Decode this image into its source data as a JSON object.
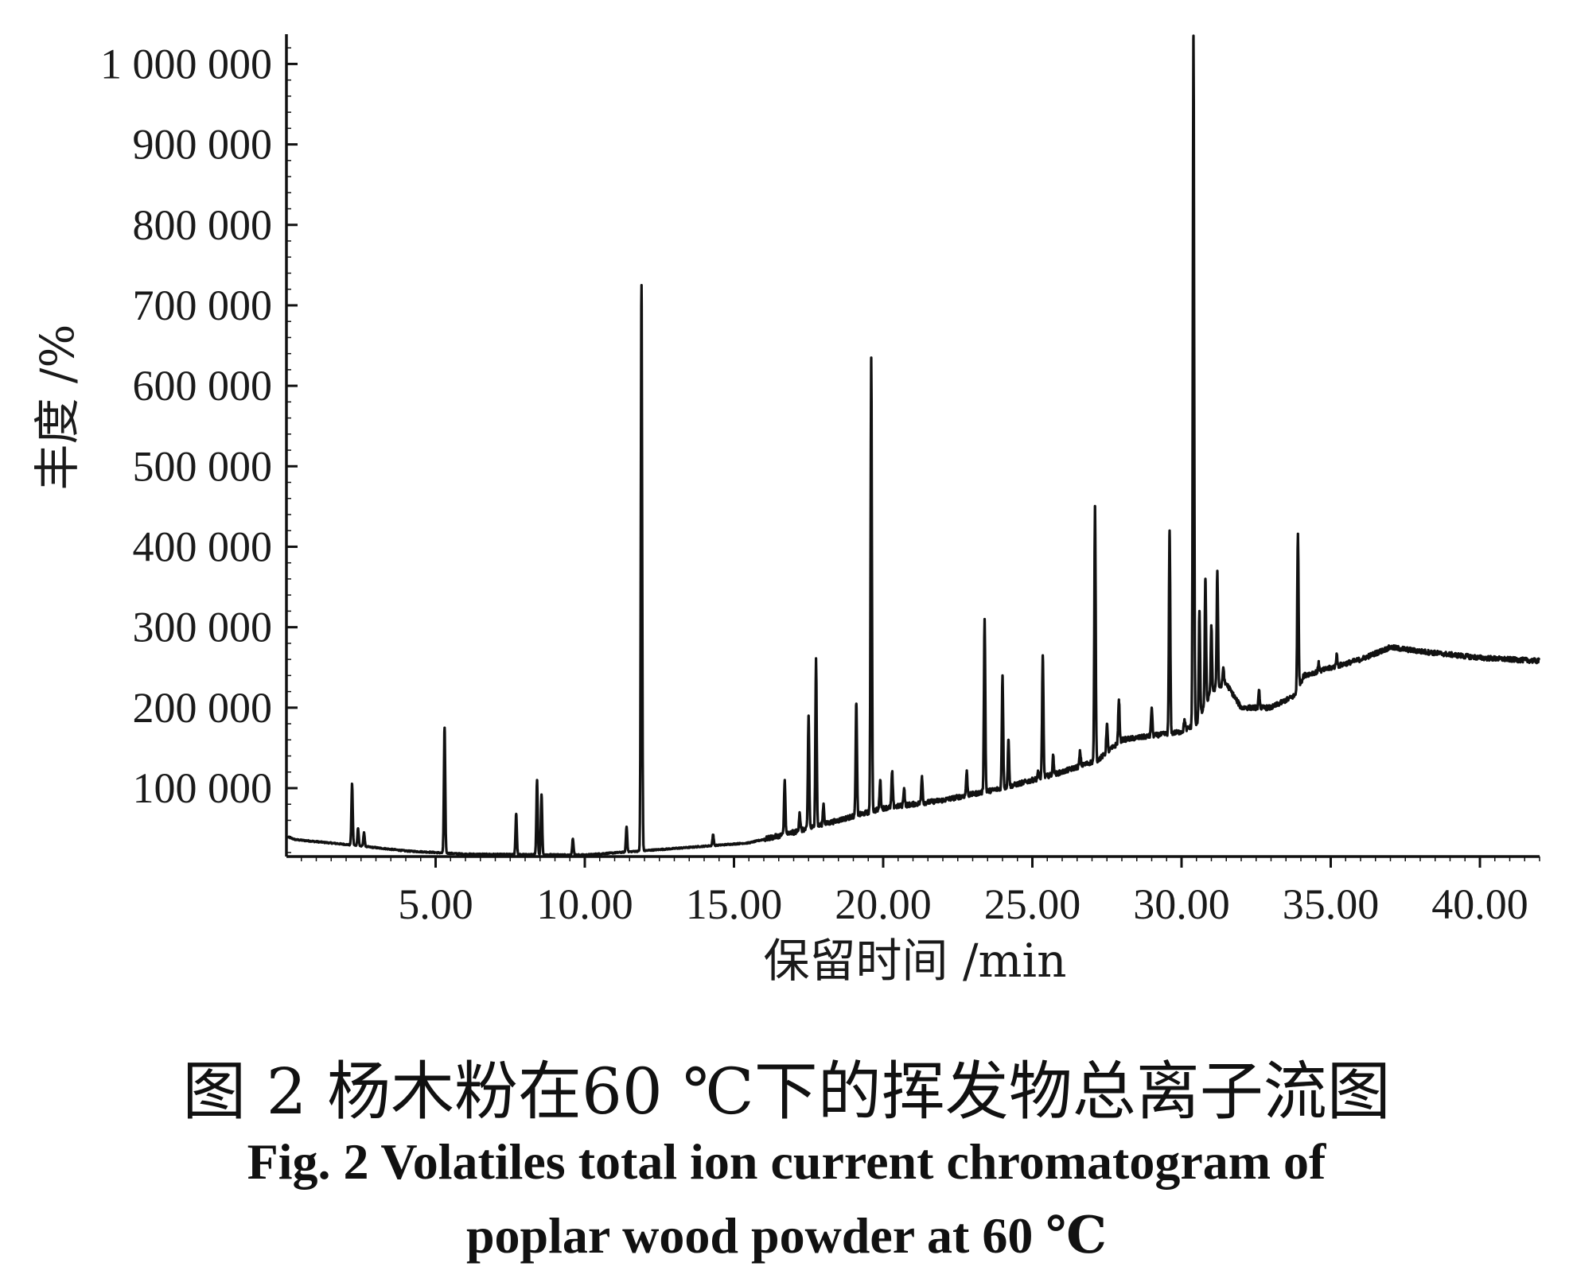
{
  "chart_data": {
    "type": "line",
    "xlabel": "保留时间 /min",
    "ylabel": "丰度 /%",
    "xlim": [
      0,
      42
    ],
    "ylim": [
      15000,
      1035000
    ],
    "x_ticks": [
      {
        "value": 5,
        "label": "5.00"
      },
      {
        "value": 10,
        "label": "10.00"
      },
      {
        "value": 15,
        "label": "15.00"
      },
      {
        "value": 20,
        "label": "20.00"
      },
      {
        "value": 25,
        "label": "25.00"
      },
      {
        "value": 30,
        "label": "30.00"
      },
      {
        "value": 35,
        "label": "35.00"
      },
      {
        "value": 40,
        "label": "40.00"
      }
    ],
    "y_ticks": [
      {
        "value": 100000,
        "label": "100 000"
      },
      {
        "value": 200000,
        "label": "200 000"
      },
      {
        "value": 300000,
        "label": "300 000"
      },
      {
        "value": 400000,
        "label": "400 000"
      },
      {
        "value": 500000,
        "label": "500 000"
      },
      {
        "value": 600000,
        "label": "600 000"
      },
      {
        "value": 700000,
        "label": "700 000"
      },
      {
        "value": 800000,
        "label": "800 000"
      },
      {
        "value": 900000,
        "label": "900 000"
      },
      {
        "value": 1000000,
        "label": "1 000 000"
      }
    ],
    "grid": false,
    "series": [
      {
        "color": "#111111",
        "baseline": [
          [
            0,
            40000
          ],
          [
            0.3,
            36000
          ],
          [
            2,
            30000
          ],
          [
            4,
            22000
          ],
          [
            6,
            18000
          ],
          [
            10,
            17000
          ],
          [
            13,
            25000
          ],
          [
            15.5,
            32000
          ],
          [
            17,
            45000
          ],
          [
            20,
            75000
          ],
          [
            22,
            85000
          ],
          [
            24,
            100000
          ],
          [
            26,
            120000
          ],
          [
            27.2,
            135000
          ],
          [
            28,
            160000
          ],
          [
            29,
            165000
          ],
          [
            30,
            170000
          ],
          [
            30.5,
            180000
          ],
          [
            31,
            220000
          ],
          [
            31.5,
            230000
          ],
          [
            32,
            200000
          ],
          [
            33,
            200000
          ],
          [
            33.8,
            215000
          ],
          [
            34.1,
            240000
          ],
          [
            36,
            260000
          ],
          [
            37,
            275000
          ],
          [
            38,
            270000
          ],
          [
            40,
            262000
          ],
          [
            42,
            258000
          ]
        ],
        "peaks": [
          [
            2.2,
            105000
          ],
          [
            2.4,
            50000
          ],
          [
            2.6,
            45000
          ],
          [
            5.3,
            175000
          ],
          [
            7.7,
            68000
          ],
          [
            8.4,
            110000
          ],
          [
            8.55,
            92000
          ],
          [
            9.6,
            37000
          ],
          [
            11.4,
            52000
          ],
          [
            11.9,
            725000
          ],
          [
            14.3,
            42000
          ],
          [
            16.7,
            110000
          ],
          [
            17.5,
            190000
          ],
          [
            17.75,
            260000
          ],
          [
            17.2,
            70000
          ],
          [
            18.0,
            80000
          ],
          [
            19.1,
            205000
          ],
          [
            19.6,
            635000
          ],
          [
            19.9,
            110000
          ],
          [
            20.3,
            120000
          ],
          [
            20.7,
            100000
          ],
          [
            21.3,
            115000
          ],
          [
            22.8,
            120000
          ],
          [
            23.4,
            310000
          ],
          [
            24.0,
            240000
          ],
          [
            24.2,
            160000
          ],
          [
            25.2,
            120000
          ],
          [
            25.35,
            265000
          ],
          [
            25.7,
            140000
          ],
          [
            26.6,
            145000
          ],
          [
            27.1,
            450000
          ],
          [
            27.5,
            180000
          ],
          [
            27.9,
            210000
          ],
          [
            29.0,
            200000
          ],
          [
            29.6,
            420000
          ],
          [
            30.1,
            185000
          ],
          [
            30.4,
            1035000
          ],
          [
            30.6,
            320000
          ],
          [
            30.8,
            360000
          ],
          [
            31.0,
            300000
          ],
          [
            31.2,
            370000
          ],
          [
            31.4,
            250000
          ],
          [
            32.6,
            220000
          ],
          [
            33.9,
            415000
          ],
          [
            34.6,
            255000
          ],
          [
            35.2,
            265000
          ]
        ]
      }
    ]
  },
  "caption": {
    "chinese": "图 2   杨木粉在60 ℃下的挥发物总离子流图",
    "english_line1": "Fig. 2   Volatiles total ion current chromatogram of",
    "english_line2": "poplar wood powder at 60 ℃"
  }
}
